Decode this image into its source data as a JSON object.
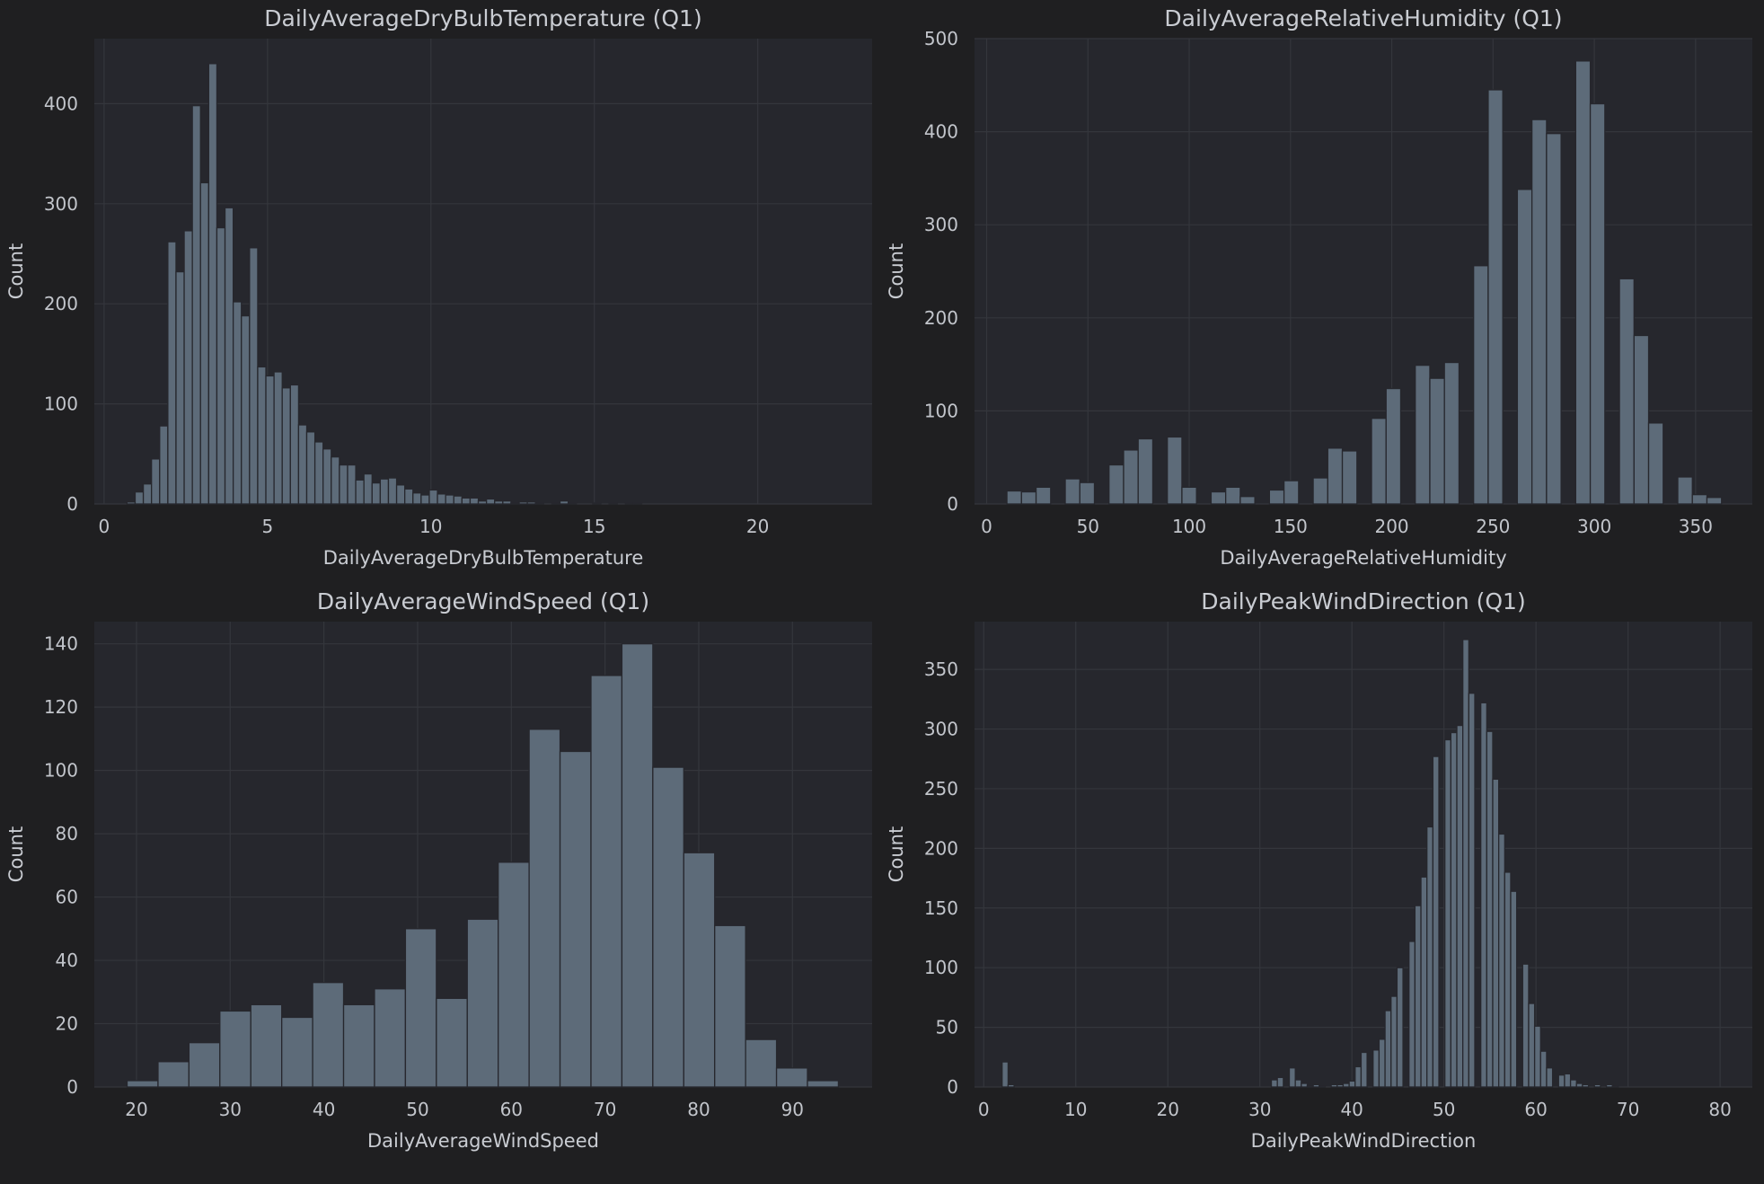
{
  "chart_data": [
    {
      "type": "bar",
      "title": "DailyAverageDryBulbTemperature  (Q1)",
      "xlabel": "DailyAverageDryBulbTemperature",
      "ylabel": "Count",
      "xlim": [
        -0.3,
        23.5
      ],
      "ylim": [
        0,
        465
      ],
      "xticks": [
        0,
        5,
        10,
        15,
        20
      ],
      "yticks": [
        0,
        100,
        200,
        300,
        400
      ],
      "bin_start": 0.7,
      "bin_width": 0.25,
      "values": [
        2,
        12,
        20,
        45,
        78,
        262,
        232,
        273,
        398,
        321,
        440,
        276,
        296,
        202,
        188,
        256,
        137,
        128,
        132,
        116,
        119,
        79,
        72,
        62,
        55,
        47,
        39,
        39,
        24,
        30,
        21,
        25,
        26,
        19,
        15,
        11,
        9,
        14,
        10,
        9,
        8,
        6,
        6,
        3,
        5,
        3,
        3,
        1,
        2,
        2,
        1,
        0,
        1,
        3,
        1,
        0,
        0,
        1,
        0,
        1,
        0,
        1,
        1
      ]
    },
    {
      "type": "bar",
      "title": "DailyAverageRelativeHumidity (Q1)",
      "xlabel": "DailyAverageRelativeHumidity",
      "ylabel": "Count",
      "xlim": [
        -6,
        378
      ],
      "ylim": [
        0,
        500
      ],
      "xticks": [
        0,
        50,
        100,
        150,
        200,
        250,
        300,
        350
      ],
      "yticks": [
        0,
        100,
        200,
        300,
        400,
        500
      ],
      "bin_start": 10,
      "bin_width": 7.2,
      "values": [
        14,
        13,
        18,
        0,
        27,
        23,
        0,
        42,
        58,
        70,
        0,
        72,
        18,
        0,
        13,
        18,
        8,
        0,
        15,
        25,
        0,
        28,
        60,
        57,
        0,
        92,
        124,
        0,
        149,
        135,
        152,
        0,
        256,
        445,
        0,
        338,
        413,
        398,
        0,
        476,
        430,
        0,
        242,
        181,
        87,
        0,
        29,
        10,
        7
      ]
    },
    {
      "type": "bar",
      "title": "DailyAverageWindSpeed (Q1)",
      "xlabel": "DailyAverageWindSpeed",
      "ylabel": "Count",
      "xlim": [
        15.5,
        98.5
      ],
      "ylim": [
        0,
        147
      ],
      "xticks": [
        20,
        30,
        40,
        50,
        60,
        70,
        80,
        90
      ],
      "yticks": [
        0,
        20,
        40,
        60,
        80,
        100,
        120,
        140
      ],
      "bin_start": 19,
      "bin_width": 3.3,
      "values": [
        2,
        8,
        14,
        24,
        26,
        22,
        33,
        26,
        31,
        50,
        28,
        53,
        71,
        113,
        106,
        130,
        140,
        101,
        74,
        51,
        15,
        6,
        2
      ]
    },
    {
      "type": "bar",
      "title": "DailyPeakWindDirection (Q1)",
      "xlabel": "DailyPeakWindDirection",
      "ylabel": "Count",
      "xlim": [
        -1,
        83.5
      ],
      "ylim": [
        0,
        390
      ],
      "xticks": [
        0,
        10,
        20,
        30,
        40,
        50,
        60,
        70,
        80
      ],
      "yticks": [
        0,
        50,
        100,
        150,
        200,
        250,
        300,
        350
      ],
      "bin_start": 2,
      "bin_width": 0.65,
      "values": [
        21,
        2,
        0,
        0,
        0,
        0,
        0,
        0,
        0,
        0,
        0,
        0,
        0,
        0,
        0,
        0,
        0,
        0,
        0,
        0,
        0,
        0,
        0,
        0,
        0,
        0,
        0,
        0,
        0,
        0,
        0,
        0,
        0,
        0,
        0,
        0,
        0,
        0,
        0,
        0,
        0,
        0,
        0,
        0,
        0,
        6,
        8,
        0,
        16,
        6,
        3,
        1,
        2,
        1,
        0,
        2,
        2,
        3,
        5,
        17,
        29,
        0,
        31,
        40,
        64,
        76,
        100,
        0,
        122,
        152,
        176,
        218,
        277,
        0,
        291,
        297,
        303,
        375,
        330,
        0,
        322,
        298,
        258,
        212,
        180,
        164,
        0,
        103,
        70,
        51,
        30,
        16,
        0,
        10,
        11,
        6,
        3,
        2,
        0,
        2,
        0,
        2,
        1,
        0
      ]
    }
  ]
}
